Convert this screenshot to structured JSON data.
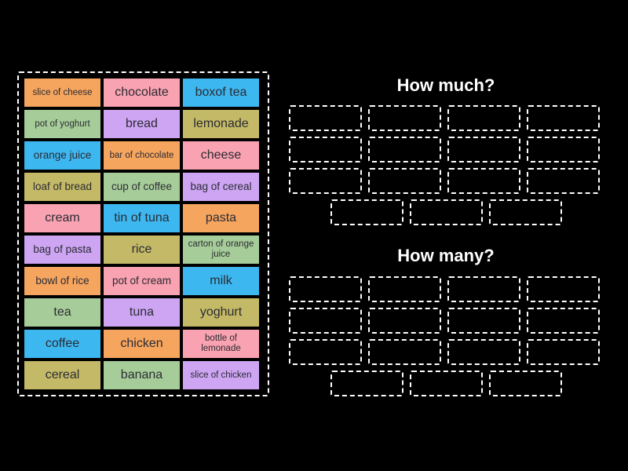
{
  "palette": {
    "orange": "#f5a55e",
    "pink": "#f9a2b1",
    "blue": "#3db7f0",
    "green": "#a6cd99",
    "purple": "#cda5f3",
    "olive": "#c3b966",
    "tile_text": "#2b2b33",
    "background": "#000000",
    "outline": "#ffffff"
  },
  "tile_bank": {
    "tiles": [
      {
        "label": "slice of cheese",
        "color": "orange"
      },
      {
        "label": "chocolate",
        "color": "pink"
      },
      {
        "label": "boxof tea",
        "color": "blue"
      },
      {
        "label": "pot of yoghurt",
        "color": "green"
      },
      {
        "label": "bread",
        "color": "purple"
      },
      {
        "label": "lemonade",
        "color": "olive"
      },
      {
        "label": "orange juice",
        "color": "blue"
      },
      {
        "label": "bar of chocolate",
        "color": "orange"
      },
      {
        "label": "cheese",
        "color": "pink"
      },
      {
        "label": "loaf of bread",
        "color": "olive"
      },
      {
        "label": "cup of coffee",
        "color": "green"
      },
      {
        "label": "bag of cereal",
        "color": "purple"
      },
      {
        "label": "cream",
        "color": "pink"
      },
      {
        "label": "tin of tuna",
        "color": "blue"
      },
      {
        "label": "pasta",
        "color": "orange"
      },
      {
        "label": "bag of pasta",
        "color": "purple"
      },
      {
        "label": "rice",
        "color": "olive"
      },
      {
        "label": "carton of orange juice",
        "color": "green"
      },
      {
        "label": "bowl of rice",
        "color": "orange"
      },
      {
        "label": "pot of cream",
        "color": "pink"
      },
      {
        "label": "milk",
        "color": "blue"
      },
      {
        "label": "tea",
        "color": "green"
      },
      {
        "label": "tuna",
        "color": "purple"
      },
      {
        "label": "yoghurt",
        "color": "olive"
      },
      {
        "label": "coffee",
        "color": "blue"
      },
      {
        "label": "chicken",
        "color": "orange"
      },
      {
        "label": "bottle of lemonade",
        "color": "pink"
      },
      {
        "label": "cereal",
        "color": "olive"
      },
      {
        "label": "banana",
        "color": "green"
      },
      {
        "label": "slice of chicken",
        "color": "purple"
      }
    ]
  },
  "groups": [
    {
      "title": "How much?",
      "slot_rows": [
        4,
        4,
        4,
        3
      ]
    },
    {
      "title": "How many?",
      "slot_rows": [
        4,
        4,
        4,
        3
      ]
    }
  ]
}
